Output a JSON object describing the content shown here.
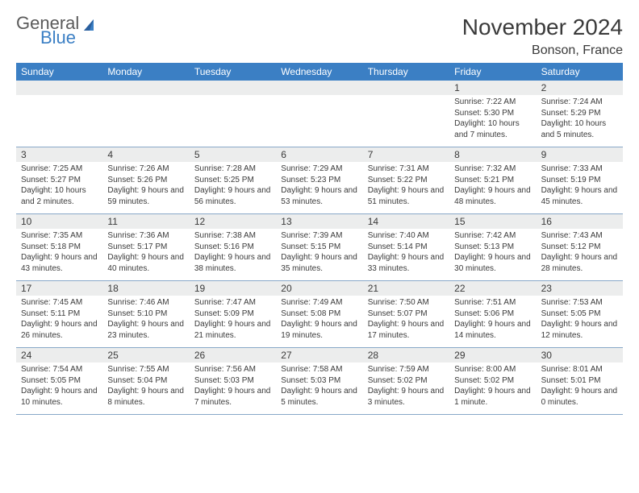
{
  "logo": {
    "line1": "General",
    "line2": "Blue"
  },
  "title": "November 2024",
  "location": "Bonson, France",
  "dayNames": [
    "Sunday",
    "Monday",
    "Tuesday",
    "Wednesday",
    "Thursday",
    "Friday",
    "Saturday"
  ],
  "colors": {
    "headerBar": "#3b7fc4",
    "dayNumBg": "#eceded",
    "weekBorder": "#88a8c8",
    "text": "#3a3a3a",
    "logoGray": "#5a5a5a",
    "logoBlue": "#3b7fc4",
    "background": "#ffffff"
  },
  "weeks": [
    [
      {
        "n": "",
        "sunrise": "",
        "sunset": "",
        "daylight": ""
      },
      {
        "n": "",
        "sunrise": "",
        "sunset": "",
        "daylight": ""
      },
      {
        "n": "",
        "sunrise": "",
        "sunset": "",
        "daylight": ""
      },
      {
        "n": "",
        "sunrise": "",
        "sunset": "",
        "daylight": ""
      },
      {
        "n": "",
        "sunrise": "",
        "sunset": "",
        "daylight": ""
      },
      {
        "n": "1",
        "sunrise": "Sunrise: 7:22 AM",
        "sunset": "Sunset: 5:30 PM",
        "daylight": "Daylight: 10 hours and 7 minutes."
      },
      {
        "n": "2",
        "sunrise": "Sunrise: 7:24 AM",
        "sunset": "Sunset: 5:29 PM",
        "daylight": "Daylight: 10 hours and 5 minutes."
      }
    ],
    [
      {
        "n": "3",
        "sunrise": "Sunrise: 7:25 AM",
        "sunset": "Sunset: 5:27 PM",
        "daylight": "Daylight: 10 hours and 2 minutes."
      },
      {
        "n": "4",
        "sunrise": "Sunrise: 7:26 AM",
        "sunset": "Sunset: 5:26 PM",
        "daylight": "Daylight: 9 hours and 59 minutes."
      },
      {
        "n": "5",
        "sunrise": "Sunrise: 7:28 AM",
        "sunset": "Sunset: 5:25 PM",
        "daylight": "Daylight: 9 hours and 56 minutes."
      },
      {
        "n": "6",
        "sunrise": "Sunrise: 7:29 AM",
        "sunset": "Sunset: 5:23 PM",
        "daylight": "Daylight: 9 hours and 53 minutes."
      },
      {
        "n": "7",
        "sunrise": "Sunrise: 7:31 AM",
        "sunset": "Sunset: 5:22 PM",
        "daylight": "Daylight: 9 hours and 51 minutes."
      },
      {
        "n": "8",
        "sunrise": "Sunrise: 7:32 AM",
        "sunset": "Sunset: 5:21 PM",
        "daylight": "Daylight: 9 hours and 48 minutes."
      },
      {
        "n": "9",
        "sunrise": "Sunrise: 7:33 AM",
        "sunset": "Sunset: 5:19 PM",
        "daylight": "Daylight: 9 hours and 45 minutes."
      }
    ],
    [
      {
        "n": "10",
        "sunrise": "Sunrise: 7:35 AM",
        "sunset": "Sunset: 5:18 PM",
        "daylight": "Daylight: 9 hours and 43 minutes."
      },
      {
        "n": "11",
        "sunrise": "Sunrise: 7:36 AM",
        "sunset": "Sunset: 5:17 PM",
        "daylight": "Daylight: 9 hours and 40 minutes."
      },
      {
        "n": "12",
        "sunrise": "Sunrise: 7:38 AM",
        "sunset": "Sunset: 5:16 PM",
        "daylight": "Daylight: 9 hours and 38 minutes."
      },
      {
        "n": "13",
        "sunrise": "Sunrise: 7:39 AM",
        "sunset": "Sunset: 5:15 PM",
        "daylight": "Daylight: 9 hours and 35 minutes."
      },
      {
        "n": "14",
        "sunrise": "Sunrise: 7:40 AM",
        "sunset": "Sunset: 5:14 PM",
        "daylight": "Daylight: 9 hours and 33 minutes."
      },
      {
        "n": "15",
        "sunrise": "Sunrise: 7:42 AM",
        "sunset": "Sunset: 5:13 PM",
        "daylight": "Daylight: 9 hours and 30 minutes."
      },
      {
        "n": "16",
        "sunrise": "Sunrise: 7:43 AM",
        "sunset": "Sunset: 5:12 PM",
        "daylight": "Daylight: 9 hours and 28 minutes."
      }
    ],
    [
      {
        "n": "17",
        "sunrise": "Sunrise: 7:45 AM",
        "sunset": "Sunset: 5:11 PM",
        "daylight": "Daylight: 9 hours and 26 minutes."
      },
      {
        "n": "18",
        "sunrise": "Sunrise: 7:46 AM",
        "sunset": "Sunset: 5:10 PM",
        "daylight": "Daylight: 9 hours and 23 minutes."
      },
      {
        "n": "19",
        "sunrise": "Sunrise: 7:47 AM",
        "sunset": "Sunset: 5:09 PM",
        "daylight": "Daylight: 9 hours and 21 minutes."
      },
      {
        "n": "20",
        "sunrise": "Sunrise: 7:49 AM",
        "sunset": "Sunset: 5:08 PM",
        "daylight": "Daylight: 9 hours and 19 minutes."
      },
      {
        "n": "21",
        "sunrise": "Sunrise: 7:50 AM",
        "sunset": "Sunset: 5:07 PM",
        "daylight": "Daylight: 9 hours and 17 minutes."
      },
      {
        "n": "22",
        "sunrise": "Sunrise: 7:51 AM",
        "sunset": "Sunset: 5:06 PM",
        "daylight": "Daylight: 9 hours and 14 minutes."
      },
      {
        "n": "23",
        "sunrise": "Sunrise: 7:53 AM",
        "sunset": "Sunset: 5:05 PM",
        "daylight": "Daylight: 9 hours and 12 minutes."
      }
    ],
    [
      {
        "n": "24",
        "sunrise": "Sunrise: 7:54 AM",
        "sunset": "Sunset: 5:05 PM",
        "daylight": "Daylight: 9 hours and 10 minutes."
      },
      {
        "n": "25",
        "sunrise": "Sunrise: 7:55 AM",
        "sunset": "Sunset: 5:04 PM",
        "daylight": "Daylight: 9 hours and 8 minutes."
      },
      {
        "n": "26",
        "sunrise": "Sunrise: 7:56 AM",
        "sunset": "Sunset: 5:03 PM",
        "daylight": "Daylight: 9 hours and 7 minutes."
      },
      {
        "n": "27",
        "sunrise": "Sunrise: 7:58 AM",
        "sunset": "Sunset: 5:03 PM",
        "daylight": "Daylight: 9 hours and 5 minutes."
      },
      {
        "n": "28",
        "sunrise": "Sunrise: 7:59 AM",
        "sunset": "Sunset: 5:02 PM",
        "daylight": "Daylight: 9 hours and 3 minutes."
      },
      {
        "n": "29",
        "sunrise": "Sunrise: 8:00 AM",
        "sunset": "Sunset: 5:02 PM",
        "daylight": "Daylight: 9 hours and 1 minute."
      },
      {
        "n": "30",
        "sunrise": "Sunrise: 8:01 AM",
        "sunset": "Sunset: 5:01 PM",
        "daylight": "Daylight: 9 hours and 0 minutes."
      }
    ]
  ]
}
